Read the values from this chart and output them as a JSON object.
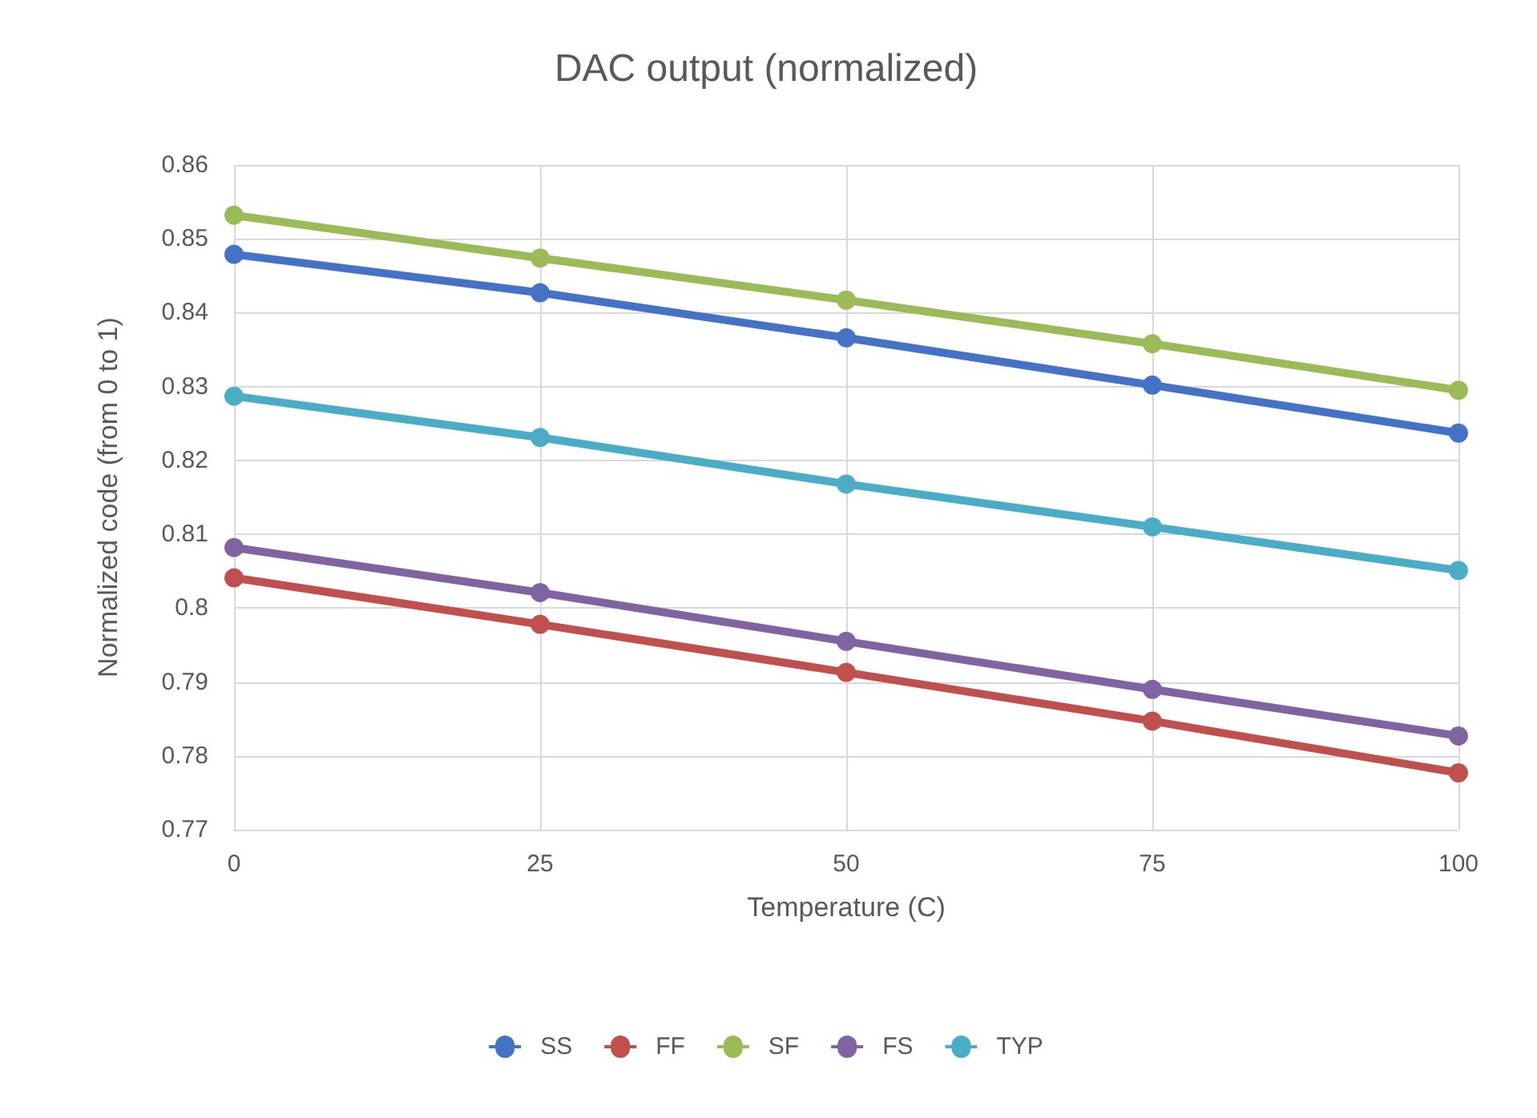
{
  "chart_data": {
    "type": "line",
    "title": "DAC output (normalized)",
    "xlabel": "Temperature (C)",
    "ylabel": "Normalized code (from 0 to 1)",
    "x": [
      0,
      25,
      50,
      75,
      100
    ],
    "series": [
      {
        "name": "SS",
        "color": "#4472c4",
        "values": [
          0.8479,
          0.8427,
          0.8366,
          0.8302,
          0.8237
        ]
      },
      {
        "name": "FF",
        "color": "#c0504d",
        "values": [
          0.8041,
          0.7978,
          0.7913,
          0.7847,
          0.7777
        ]
      },
      {
        "name": "SF",
        "color": "#9bbb59",
        "values": [
          0.8532,
          0.8474,
          0.8417,
          0.8358,
          0.8295
        ]
      },
      {
        "name": "FS",
        "color": "#8064a2",
        "values": [
          0.8082,
          0.8021,
          0.7955,
          0.789,
          0.7827
        ]
      },
      {
        "name": "TYP",
        "color": "#4bacc6",
        "values": [
          0.8287,
          0.8231,
          0.8168,
          0.811,
          0.8051
        ]
      }
    ],
    "xlim": [
      0,
      100
    ],
    "xticks": [
      0,
      25,
      50,
      75,
      100
    ],
    "ylim": [
      0.77,
      0.86
    ],
    "yticks": [
      0.77,
      0.78,
      0.79,
      0.8,
      0.81,
      0.82,
      0.83,
      0.84,
      0.85,
      0.86
    ],
    "grid": true,
    "legend": "bottom",
    "marker": "circle",
    "line_style": "solid"
  }
}
